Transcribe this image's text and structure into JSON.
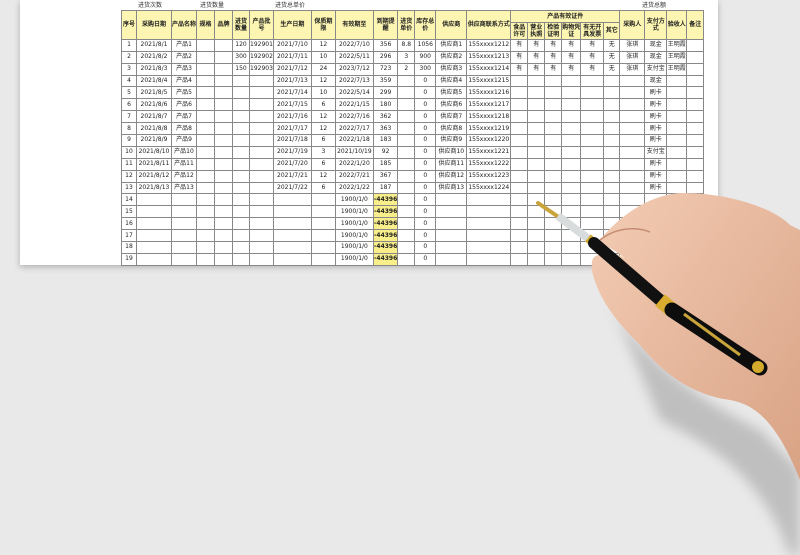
{
  "summary_labels": [
    "进货次数",
    "进货数量",
    "进货总单价",
    "进货总额"
  ],
  "headers": [
    "序号",
    "采购日期",
    "产品名称",
    "规格",
    "品牌",
    "进货数量",
    "产品批号",
    "生产日期",
    "保质期限",
    "有效期至",
    "到期提醒",
    "进货单价",
    "库存总价",
    "供应商",
    "供应商联系方式",
    "食品许可",
    "营业执照",
    "检验证明",
    "购物凭证",
    "有无开具发票",
    "其它",
    "采购人",
    "支付方式",
    "验收人",
    "备注"
  ],
  "group_header": "产品有效证件",
  "rows": [
    [
      "1",
      "2021/8/1",
      "产品1",
      "",
      "",
      "120",
      "192901",
      "2021/7/10",
      "12",
      "2022/7/10",
      "356",
      "8.8",
      "1056",
      "供应商1",
      "155xxxx1212",
      "有",
      "有",
      "有",
      "有",
      "有",
      "无",
      "张琪",
      "现金",
      "王明霞",
      ""
    ],
    [
      "2",
      "2021/8/2",
      "产品2",
      "",
      "",
      "300",
      "192902",
      "2021/7/11",
      "10",
      "2022/5/11",
      "296",
      "3",
      "900",
      "供应商2",
      "155xxxx1213",
      "有",
      "有",
      "有",
      "有",
      "有",
      "无",
      "张琪",
      "现金",
      "王明霞",
      ""
    ],
    [
      "3",
      "2021/8/3",
      "产品3",
      "",
      "",
      "150",
      "192903",
      "2021/7/12",
      "24",
      "2023/7/12",
      "723",
      "2",
      "300",
      "供应商3",
      "155xxxx1214",
      "有",
      "有",
      "有",
      "有",
      "有",
      "无",
      "张琪",
      "支付宝",
      "王明霞",
      ""
    ],
    [
      "4",
      "2021/8/4",
      "产品4",
      "",
      "",
      "",
      "",
      "2021/7/13",
      "12",
      "2022/7/13",
      "359",
      "",
      "0",
      "供应商4",
      "155xxxx1215",
      "",
      "",
      "",
      "",
      "",
      "",
      "",
      "现金",
      "",
      ""
    ],
    [
      "5",
      "2021/8/5",
      "产品5",
      "",
      "",
      "",
      "",
      "2021/7/14",
      "10",
      "2022/5/14",
      "299",
      "",
      "0",
      "供应商5",
      "155xxxx1216",
      "",
      "",
      "",
      "",
      "",
      "",
      "",
      "刷卡",
      "",
      ""
    ],
    [
      "6",
      "2021/8/6",
      "产品6",
      "",
      "",
      "",
      "",
      "2021/7/15",
      "6",
      "2022/1/15",
      "180",
      "",
      "0",
      "供应商6",
      "155xxxx1217",
      "",
      "",
      "",
      "",
      "",
      "",
      "",
      "刷卡",
      "",
      ""
    ],
    [
      "7",
      "2021/8/7",
      "产品7",
      "",
      "",
      "",
      "",
      "2021/7/16",
      "12",
      "2022/7/16",
      "362",
      "",
      "0",
      "供应商7",
      "155xxxx1218",
      "",
      "",
      "",
      "",
      "",
      "",
      "",
      "刷卡",
      "",
      ""
    ],
    [
      "8",
      "2021/8/8",
      "产品8",
      "",
      "",
      "",
      "",
      "2021/7/17",
      "12",
      "2022/7/17",
      "363",
      "",
      "0",
      "供应商8",
      "155xxxx1219",
      "",
      "",
      "",
      "",
      "",
      "",
      "",
      "刷卡",
      "",
      ""
    ],
    [
      "9",
      "2021/8/9",
      "产品9",
      "",
      "",
      "",
      "",
      "2021/7/18",
      "6",
      "2022/1/18",
      "183",
      "",
      "0",
      "供应商9",
      "155xxxx1220",
      "",
      "",
      "",
      "",
      "",
      "",
      "",
      "刷卡",
      "",
      ""
    ],
    [
      "10",
      "2021/8/10",
      "产品10",
      "",
      "",
      "",
      "",
      "2021/7/19",
      "3",
      "2021/10/19",
      "92",
      "",
      "0",
      "供应商10",
      "155xxxx1221",
      "",
      "",
      "",
      "",
      "",
      "",
      "",
      "支付宝",
      "",
      ""
    ],
    [
      "11",
      "2021/8/11",
      "产品11",
      "",
      "",
      "",
      "",
      "2021/7/20",
      "6",
      "2022/1/20",
      "185",
      "",
      "0",
      "供应商11",
      "155xxxx1222",
      "",
      "",
      "",
      "",
      "",
      "",
      "",
      "刷卡",
      "",
      ""
    ],
    [
      "12",
      "2021/8/12",
      "产品12",
      "",
      "",
      "",
      "",
      "2021/7/21",
      "12",
      "2022/7/21",
      "367",
      "",
      "0",
      "供应商12",
      "155xxxx1223",
      "",
      "",
      "",
      "",
      "",
      "",
      "",
      "刷卡",
      "",
      ""
    ],
    [
      "13",
      "2021/8/13",
      "产品13",
      "",
      "",
      "",
      "",
      "2021/7/22",
      "6",
      "2022/1/22",
      "187",
      "",
      "0",
      "供应商13",
      "155xxxx1224",
      "",
      "",
      "",
      "",
      "",
      "",
      "",
      "刷卡",
      "",
      ""
    ],
    [
      "14",
      "",
      "",
      "",
      "",
      "",
      "",
      "",
      "",
      "1900/1/0",
      "-44396",
      "",
      "0",
      "",
      "",
      "",
      "",
      "",
      "",
      "",
      "",
      "",
      "",
      "",
      ""
    ],
    [
      "15",
      "",
      "",
      "",
      "",
      "",
      "",
      "",
      "",
      "1900/1/0",
      "-44396",
      "",
      "0",
      "",
      "",
      "",
      "",
      "",
      "",
      "",
      "",
      "",
      "",
      "",
      ""
    ],
    [
      "16",
      "",
      "",
      "",
      "",
      "",
      "",
      "",
      "",
      "1900/1/0",
      "-44396",
      "",
      "0",
      "",
      "",
      "",
      "",
      "",
      "",
      "",
      "",
      "",
      "",
      "",
      ""
    ],
    [
      "17",
      "",
      "",
      "",
      "",
      "",
      "",
      "",
      "",
      "1900/1/0",
      "-44396",
      "",
      "0",
      "",
      "",
      "",
      "",
      "",
      "",
      "",
      "",
      "",
      "",
      "",
      ""
    ],
    [
      "18",
      "",
      "",
      "",
      "",
      "",
      "",
      "",
      "",
      "1900/1/0",
      "-44396",
      "",
      "0",
      "",
      "",
      "",
      "",
      "",
      "",
      "",
      "",
      "",
      "",
      "",
      ""
    ],
    [
      "19",
      "",
      "",
      "",
      "",
      "",
      "",
      "",
      "",
      "1900/1/0",
      "-44396",
      "",
      "0",
      "",
      "",
      "",
      "",
      "",
      "",
      "",
      "",
      "",
      "",
      "",
      ""
    ]
  ],
  "colors": {
    "header_bg": "#fdf6b2",
    "warning_bg": "#f8ee8a",
    "background": "#e9e9e9"
  },
  "decor": {
    "image": "hand-holding-fountain-pen"
  }
}
